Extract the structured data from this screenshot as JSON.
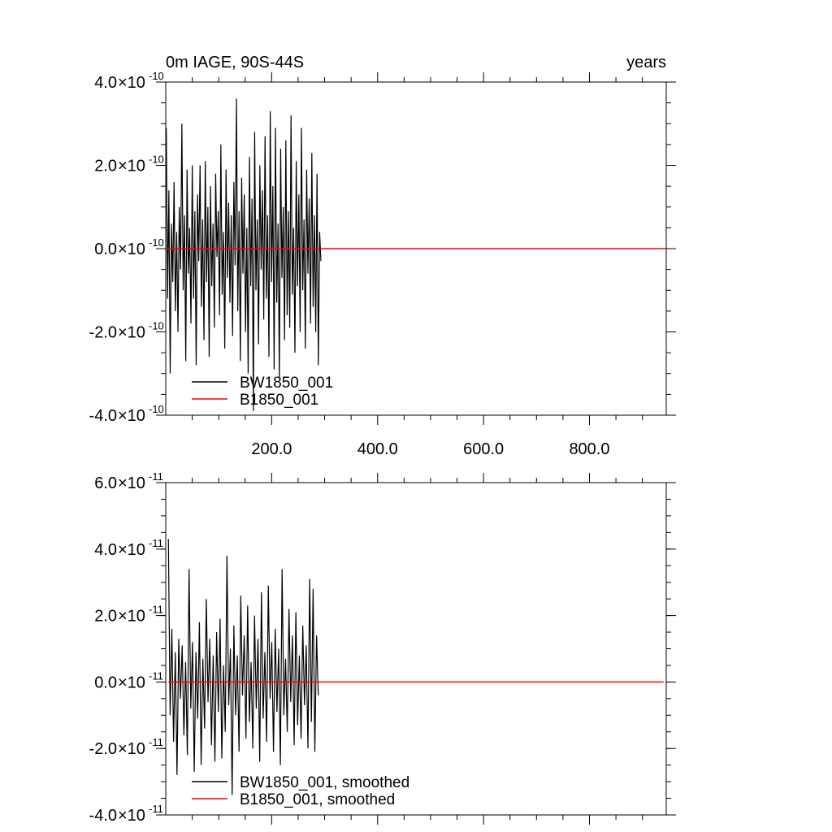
{
  "chart_data": [
    {
      "type": "line",
      "title": "0m IAGE, 90S-44S",
      "title_right": "years",
      "xlim": [
        0,
        945
      ],
      "ylim": [
        -4e-10,
        4e-10
      ],
      "x_tick_labels": [
        "200.0",
        "400.0",
        "600.0",
        "800.0"
      ],
      "x_ticks": [
        200,
        400,
        600,
        800
      ],
      "y_tick_mantissas": [
        "-4.0",
        "-2.0",
        "0.0",
        "2.0",
        "4.0"
      ],
      "y_ticks": [
        -4e-10,
        -2e-10,
        0.0,
        2e-10,
        4e-10
      ],
      "y_exponent": "-10",
      "times_sign": "×",
      "legend_position": "bottom-left",
      "series": [
        {
          "name": "BW1850_001",
          "color": "#000000",
          "x_start": 1,
          "x_end": 293,
          "values": [
            2.9e-10,
            -1.2e-10,
            1.4e-10,
            -3e-10,
            6e-11,
            -8e-11,
            1.6e-10,
            -1.5e-10,
            4e-11,
            -2e-10,
            1e-10,
            -5e-11,
            3e-10,
            -1e-10,
            8e-11,
            -2.7e-10,
            1.9e-10,
            -6e-11,
            5e-11,
            -1.8e-10,
            2e-10,
            -1.2e-10,
            9e-11,
            -2.8e-10,
            1.3e-10,
            -3e-11,
            2e-10,
            -1.4e-10,
            7e-11,
            -2.2e-10,
            2.1e-10,
            -8e-11,
            1e-10,
            -2.6e-10,
            1.5e-10,
            -9e-11,
            6e-11,
            -1.9e-10,
            1.8e-10,
            -2e-11,
            9e-11,
            -1.6e-10,
            2.5e-10,
            -1.1e-10,
            4e-11,
            -2.4e-10,
            1.9e-10,
            -7e-11,
            1.1e-10,
            -1.3e-10,
            8e-11,
            -2.1e-10,
            1.6e-10,
            -4e-11,
            3.6e-10,
            -1.5e-10,
            9e-11,
            -2.7e-10,
            1.7e-10,
            -6e-11,
            1.3e-10,
            -2e-10,
            5e-11,
            -3e-10,
            2.2e-10,
            -9e-11,
            1.2e-10,
            -3.9e-10,
            2.8e-10,
            -1e-10,
            7e-11,
            -2.3e-10,
            2e-10,
            -5e-11,
            1.4e-10,
            -1.7e-10,
            2.7e-10,
            -1.2e-10,
            8e-11,
            -2.6e-10,
            3.3e-10,
            -8e-11,
            1.5e-10,
            -2.9e-10,
            2.9e-10,
            -1.3e-10,
            6e-11,
            -3.1e-10,
            2.4e-10,
            -7e-11,
            1e-10,
            -2.2e-10,
            2.6e-10,
            -1.6e-10,
            9e-11,
            -1.9e-10,
            3.2e-10,
            -1.1e-10,
            5e-11,
            -2.5e-10,
            2.1e-10,
            -9e-11,
            1.3e-10,
            -2e-10,
            2.9e-10,
            -1e-10,
            7e-11,
            -2.4e-10,
            1.9e-10,
            -6e-11,
            1.2e-10,
            -1.8e-10,
            2.3e-10,
            -1.4e-10,
            8e-11,
            -2e-10,
            1.8e-10,
            -2.8e-10,
            4e-11,
            -3e-11
          ],
          "legend_label": "BW1850_001"
        },
        {
          "name": "B1850_001",
          "color": "#ff0000",
          "x_start": 1,
          "x_end": 945,
          "values": [
            0.0,
            0.0
          ],
          "legend_label": "B1850_001"
        }
      ]
    },
    {
      "type": "line",
      "title": "",
      "xlim": [
        0,
        945
      ],
      "ylim": [
        -4e-11,
        6e-11
      ],
      "x_ticks": [
        200,
        400,
        600,
        800
      ],
      "y_tick_mantissas": [
        "-4.0",
        "-2.0",
        "0.0",
        "2.0",
        "4.0",
        "6.0"
      ],
      "y_ticks": [
        -4e-11,
        -2e-11,
        0.0,
        2e-11,
        4e-11,
        6e-11
      ],
      "y_exponent": "-11",
      "times_sign": "×",
      "legend_position": "bottom-left",
      "series": [
        {
          "name": "BW1850_001, smoothed",
          "color": "#000000",
          "x_start": 5,
          "x_end": 288,
          "values": [
            4.3e-11,
            -1e-11,
            1.6e-11,
            -1.8e-11,
            9e-12,
            -2.8e-11,
            1.3e-11,
            -5e-12,
            1.1e-11,
            -1.6e-11,
            6e-12,
            -2.2e-11,
            3.4e-11,
            -8e-12,
            1.2e-11,
            -2.7e-11,
            9e-12,
            -1.1e-11,
            1.8e-11,
            -2.5e-11,
            7e-12,
            -1.4e-11,
            2.5e-11,
            -6e-12,
            1.3e-11,
            -1.9e-11,
            8e-12,
            -2.4e-11,
            1.5e-11,
            -9e-12,
            1.9e-11,
            -2.3e-11,
            5e-12,
            -1.5e-11,
            3.8e-11,
            -7e-12,
            1e-11,
            -3.4e-11,
            1.7e-11,
            -1e-11,
            8e-12,
            -2.1e-11,
            2.6e-11,
            -4e-12,
            1.4e-11,
            -1.7e-11,
            2.3e-11,
            -1.2e-11,
            6e-12,
            -2e-11,
            2e-11,
            -8e-12,
            1.3e-11,
            -2.4e-11,
            2.7e-11,
            -1.1e-11,
            9e-12,
            -1.8e-11,
            2.9e-11,
            -5e-12,
            1.2e-11,
            -2.1e-11,
            1.6e-11,
            -9e-12,
            1e-11,
            -2.5e-11,
            3.4e-11,
            -1e-11,
            7e-12,
            -1.5e-11,
            2.2e-11,
            -6e-12,
            1.4e-11,
            -1.9e-11,
            2.1e-11,
            -1.3e-11,
            8e-12,
            -1.7e-11,
            1.7e-11,
            -7e-12,
            1.1e-11,
            -2e-11,
            3.1e-11,
            -1.2e-11,
            2.8e-11,
            -2.1e-11,
            1.4e-11,
            -4e-12
          ],
          "legend_label": "BW1850_001, smoothed"
        },
        {
          "name": "B1850_001, smoothed",
          "color": "#ff0000",
          "x_start": 5,
          "x_end": 940,
          "values": [
            0.0,
            0.0
          ],
          "legend_label": "B1850_001, smoothed"
        }
      ]
    }
  ]
}
